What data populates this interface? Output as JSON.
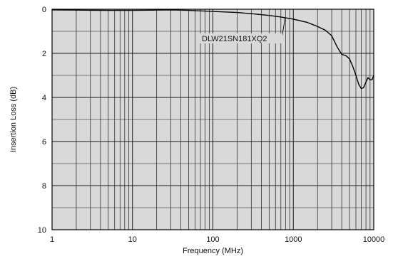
{
  "chart_data": {
    "type": "line",
    "xlabel": "Frequency (MHz)",
    "ylabel": "Insertion Loss (dB)",
    "xscale": "log",
    "xlim": [
      1,
      10000
    ],
    "ylim": [
      0,
      10
    ],
    "y_inverted": true,
    "grid": true,
    "x_tick_labels": [
      "1",
      "10",
      "100",
      "1000",
      "10000"
    ],
    "y_tick_labels": [
      "0",
      "2",
      "4",
      "6",
      "8",
      "10"
    ],
    "series": [
      {
        "name": "DLW21SN181XQ2",
        "x": [
          1,
          2,
          5,
          10,
          20,
          30,
          50,
          100,
          200,
          300,
          500,
          700,
          1000,
          1500,
          2000,
          2500,
          3000,
          3500,
          4000,
          4500,
          5000,
          5500,
          6000,
          6500,
          7000,
          7500,
          8000,
          8500,
          9000,
          9500,
          10000
        ],
        "y": [
          0.03,
          0.04,
          0.05,
          0.05,
          0.04,
          0.03,
          0.05,
          0.1,
          0.15,
          0.2,
          0.28,
          0.35,
          0.45,
          0.6,
          0.78,
          0.95,
          1.2,
          1.7,
          2.05,
          2.1,
          2.25,
          2.6,
          3.0,
          3.4,
          3.6,
          3.55,
          3.3,
          3.1,
          3.2,
          3.2,
          3.0
        ]
      }
    ],
    "colors": {
      "plot_background": "#d9d9d9",
      "grid": "#1a1a1a",
      "line": "#000000"
    }
  }
}
